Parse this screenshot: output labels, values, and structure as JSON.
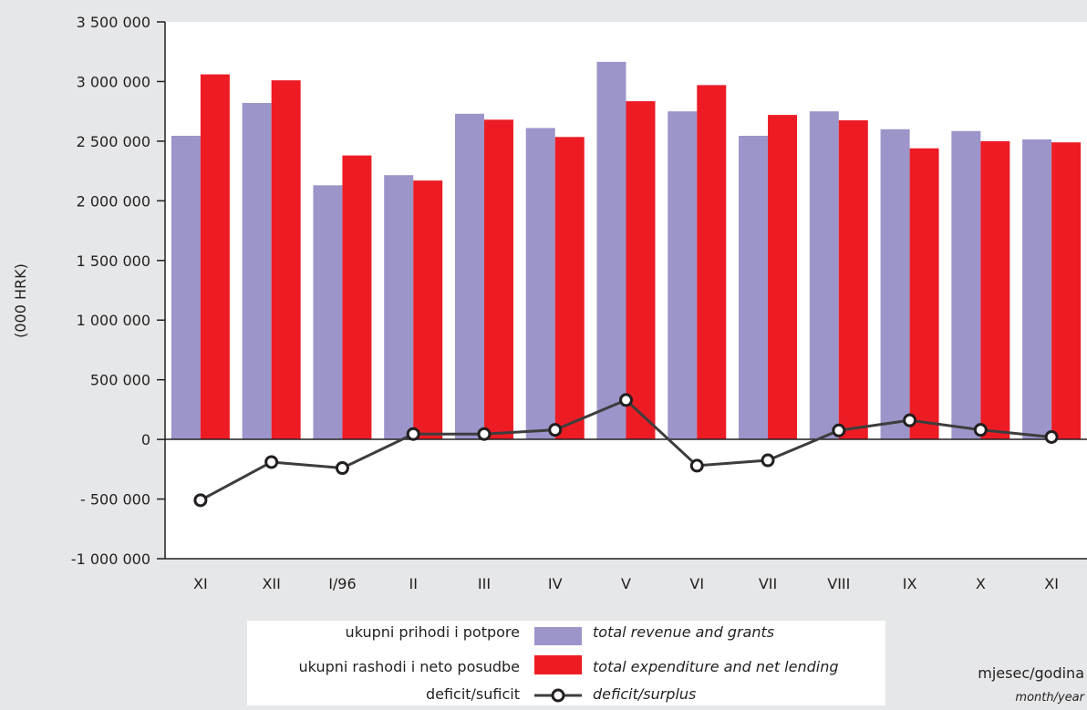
{
  "chart_data": {
    "type": "bar",
    "categories": [
      "XI",
      "XII",
      "I/96",
      "II",
      "III",
      "IV",
      "V",
      "VI",
      "VII",
      "VIII",
      "IX",
      "X",
      "XI"
    ],
    "series": [
      {
        "name": "ukupni prihodi i potpore",
        "name_en": "total revenue and grants",
        "type": "bar",
        "color": "#9b95c9",
        "values": [
          2545000,
          2820000,
          2130000,
          2215000,
          2730000,
          2610000,
          3165000,
          2750000,
          2545000,
          2750000,
          2600000,
          2585000,
          2515000
        ]
      },
      {
        "name": "ukupni rashodi i neto posudbe",
        "name_en": "total expenditure and net lending",
        "type": "bar",
        "color": "#ed1c24",
        "values": [
          3060000,
          3010000,
          2380000,
          2170000,
          2680000,
          2535000,
          2835000,
          2970000,
          2720000,
          2675000,
          2440000,
          2500000,
          2490000
        ]
      },
      {
        "name": "deficit/suficit",
        "name_en": "deficit/surplus",
        "type": "line",
        "color": "#3d3d3d",
        "values": [
          -510000,
          -190000,
          -240000,
          45000,
          45000,
          80000,
          330000,
          -220000,
          -175000,
          75000,
          160000,
          80000,
          20000
        ]
      }
    ],
    "ylabel": "(000 HRK)",
    "xlabel": "mjesec/godina",
    "xlabel_en": "month/year",
    "ylim": [
      -1000000,
      3500000
    ],
    "yticks": [
      -1000000,
      -500000,
      0,
      500000,
      1000000,
      1500000,
      2000000,
      2500000,
      3000000,
      3500000
    ],
    "ytick_labels": [
      "-1 000 000",
      "- 500 000",
      "0",
      "500 000",
      "1 000 000",
      "1 500 000",
      "2 000 000",
      "2 500 000",
      "3 000 000",
      "3 500 000"
    ],
    "grid": false,
    "legend_position": "bottom-center"
  },
  "colors": {
    "background": "#e6e7e8",
    "plot_area": "#ffffff",
    "axis": "#231f20",
    "legend_box": "#ffffff"
  }
}
